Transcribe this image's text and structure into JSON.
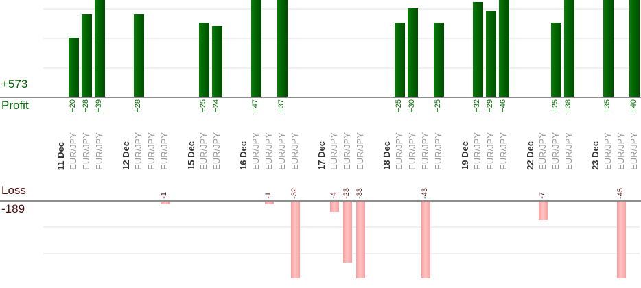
{
  "summary": {
    "profit_total": "+573",
    "profit_label": "Profit",
    "loss_label": "Loss",
    "loss_total": "-189"
  },
  "chart_data": {
    "type": "bar",
    "description": "Per-trade results: profits as green bars above the upper baseline, losses as pink bars below the lower baseline, grouped by trading day",
    "profit_axis": {
      "label": "Profit",
      "total": "+573",
      "visible_range": [
        0,
        32
      ],
      "gridline_step": 10,
      "note": "bars above +32 are clipped by the top edge"
    },
    "loss_axis": {
      "label": "Loss",
      "total": "-189",
      "visible_range": [
        -30,
        0
      ],
      "gridline_step": 10,
      "note": "bars below -30 are clipped by the bottom edge"
    },
    "grid": true,
    "legend": "none",
    "groups": [
      {
        "date": "11 Dec",
        "trades": [
          {
            "symbol": "EUR/JPY",
            "value": 20
          },
          {
            "symbol": "EUR/JPY",
            "value": 28
          },
          {
            "symbol": "EUR/JPY",
            "value": 39
          }
        ]
      },
      {
        "date": "12 Dec",
        "trades": [
          {
            "symbol": "EUR/JPY",
            "value": 28
          },
          {
            "symbol": "EUR/JPY",
            "value": 0
          },
          {
            "symbol": "EUR/JPY",
            "value": -1
          }
        ]
      },
      {
        "date": "15 Dec",
        "trades": [
          {
            "symbol": "EUR/JPY",
            "value": 25
          },
          {
            "symbol": "EUR/JPY",
            "value": 24
          }
        ]
      },
      {
        "date": "16 Dec",
        "trades": [
          {
            "symbol": "EUR/JPY",
            "value": 47
          },
          {
            "symbol": "EUR/JPY",
            "value": -1
          },
          {
            "symbol": "EUR/JPY",
            "value": 37
          },
          {
            "symbol": "EUR/JPY",
            "value": -32
          }
        ]
      },
      {
        "date": "17 Dec",
        "trades": [
          {
            "symbol": "EUR/JPY",
            "value": -4
          },
          {
            "symbol": "EUR/JPY",
            "value": -23
          },
          {
            "symbol": "EUR/JPY",
            "value": -33
          }
        ]
      },
      {
        "date": "18 Dec",
        "trades": [
          {
            "symbol": "EUR/JPY",
            "value": 25
          },
          {
            "symbol": "EUR/JPY",
            "value": 30
          },
          {
            "symbol": "EUR/JPY",
            "value": -43
          },
          {
            "symbol": "EUR/JPY",
            "value": 25
          }
        ]
      },
      {
        "date": "19 Dec",
        "trades": [
          {
            "symbol": "EUR/JPY",
            "value": 32
          },
          {
            "symbol": "EUR/JPY",
            "value": 29
          },
          {
            "symbol": "EUR/JPY",
            "value": 46
          }
        ]
      },
      {
        "date": "22 Dec",
        "trades": [
          {
            "symbol": "EUR/JPY",
            "value": -7
          },
          {
            "symbol": "EUR/JPY",
            "value": 25
          },
          {
            "symbol": "EUR/JPY",
            "value": 38
          }
        ]
      },
      {
        "date": "23 Dec",
        "trades": [
          {
            "symbol": "EUR/JPY",
            "value": 35
          },
          {
            "symbol": "EUR/JPY",
            "value": -45
          },
          {
            "symbol": "EUR/JPY",
            "value": 40
          }
        ]
      }
    ],
    "colors": {
      "profit_bar": "#006600",
      "loss_bar": "#ffb3b3",
      "profit_text": "#007700",
      "loss_text": "#4d1414",
      "date_text": "#333333",
      "symbol_text": "#9a9a9a",
      "axis_line": "#8e8e8e",
      "gridline": "#f0f0f0"
    }
  }
}
